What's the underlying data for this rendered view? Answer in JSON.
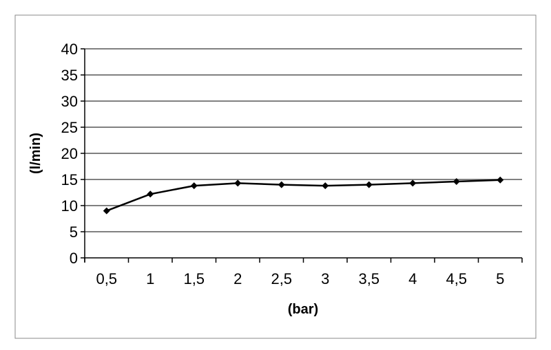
{
  "chart_data": {
    "type": "line",
    "title": "",
    "xlabel": "(bar)",
    "ylabel": "(l/min)",
    "categories": [
      "0,5",
      "1",
      "1,5",
      "2",
      "2,5",
      "3",
      "3,5",
      "4",
      "4,5",
      "5"
    ],
    "values": [
      9.0,
      12.2,
      13.8,
      14.3,
      14.0,
      13.8,
      14.0,
      14.3,
      14.6,
      14.9
    ],
    "ylim": [
      0,
      40
    ],
    "yticks": [
      "0",
      "5",
      "10",
      "15",
      "20",
      "25",
      "30",
      "35",
      "40"
    ],
    "grid": true,
    "legend": "none",
    "line_color": "#000000",
    "grid_color": "#808080"
  }
}
